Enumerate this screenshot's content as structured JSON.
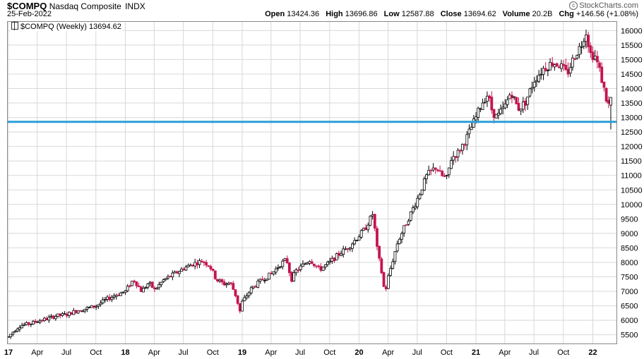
{
  "header": {
    "symbol": "$COMPQ",
    "name": "Nasdaq Composite",
    "exchange": "INDX",
    "date": "25-Feb-2022",
    "brand": "StockCharts.com",
    "open_label": "Open",
    "open": "13424.36",
    "high_label": "High",
    "high": "13696.86",
    "low_label": "Low",
    "low": "12587.88",
    "close_label": "Close",
    "close": "13694.62",
    "volume_label": "Volume",
    "volume": "20.2B",
    "chg_label": "Chg",
    "chg": "+146.56 (+1.08%)"
  },
  "legend": {
    "label": "$COMPQ (Weekly) 13694.62"
  },
  "colors": {
    "up": "#000000",
    "down": "#c4154e",
    "hline": "#2a9fd6",
    "grid": "#d8d8d8"
  },
  "chart_data": {
    "type": "candlestick",
    "interval": "weekly",
    "ylim": [
      5200,
      16300
    ],
    "y_axis_side": "right",
    "y_ticks": [
      5500,
      6000,
      6500,
      7000,
      7500,
      8000,
      8500,
      9000,
      9500,
      10000,
      10500,
      11000,
      11500,
      12000,
      12500,
      13000,
      13500,
      14000,
      14500,
      15000,
      15500,
      16000
    ],
    "x_ticks": [
      {
        "label": "17",
        "bold": true,
        "t": 0
      },
      {
        "label": "Apr",
        "t": 0.2466
      },
      {
        "label": "Jul",
        "t": 0.4959
      },
      {
        "label": "Oct",
        "t": 0.7479
      },
      {
        "label": "18",
        "bold": true,
        "t": 1.0
      },
      {
        "label": "Apr",
        "t": 1.2466
      },
      {
        "label": "Jul",
        "t": 1.4959
      },
      {
        "label": "Oct",
        "t": 1.7479
      },
      {
        "label": "19",
        "bold": true,
        "t": 2.0
      },
      {
        "label": "Apr",
        "t": 2.2466
      },
      {
        "label": "Jul",
        "t": 2.4959
      },
      {
        "label": "Oct",
        "t": 2.7479
      },
      {
        "label": "20",
        "bold": true,
        "t": 3.0
      },
      {
        "label": "Apr",
        "t": 3.2486
      },
      {
        "label": "Jul",
        "t": 3.4973
      },
      {
        "label": "Oct",
        "t": 3.7486
      },
      {
        "label": "21",
        "bold": true,
        "t": 4.0
      },
      {
        "label": "Apr",
        "t": 4.2466
      },
      {
        "label": "Jul",
        "t": 4.4959
      },
      {
        "label": "Oct",
        "t": 4.7479
      },
      {
        "label": "22",
        "bold": true,
        "t": 5.0
      }
    ],
    "t_range": [
      0,
      5.16
    ],
    "horizontal_line": 12850,
    "anchors": [
      [
        0.0,
        5430
      ],
      [
        0.05,
        5650
      ],
      [
        0.1,
        5820
      ],
      [
        0.15,
        5860
      ],
      [
        0.2,
        5900
      ],
      [
        0.25,
        5980
      ],
      [
        0.33,
        6050
      ],
      [
        0.4,
        6150
      ],
      [
        0.5,
        6200
      ],
      [
        0.58,
        6330
      ],
      [
        0.66,
        6400
      ],
      [
        0.75,
        6500
      ],
      [
        0.83,
        6700
      ],
      [
        0.92,
        6880
      ],
      [
        1.0,
        7000
      ],
      [
        1.07,
        7420
      ],
      [
        1.1,
        7240
      ],
      [
        1.14,
        7000
      ],
      [
        1.2,
        7300
      ],
      [
        1.25,
        7050
      ],
      [
        1.33,
        7400
      ],
      [
        1.42,
        7600
      ],
      [
        1.5,
        7800
      ],
      [
        1.58,
        7950
      ],
      [
        1.66,
        8050
      ],
      [
        1.72,
        7900
      ],
      [
        1.78,
        7400
      ],
      [
        1.85,
        7250
      ],
      [
        1.9,
        7300
      ],
      [
        1.95,
        6800
      ],
      [
        1.98,
        6300
      ],
      [
        2.0,
        6630
      ],
      [
        2.08,
        7100
      ],
      [
        2.17,
        7400
      ],
      [
        2.25,
        7600
      ],
      [
        2.33,
        7950
      ],
      [
        2.38,
        8100
      ],
      [
        2.42,
        7400
      ],
      [
        2.46,
        7700
      ],
      [
        2.58,
        8100
      ],
      [
        2.66,
        7750
      ],
      [
        2.75,
        8000
      ],
      [
        2.83,
        8300
      ],
      [
        2.9,
        8500
      ],
      [
        2.95,
        8700
      ],
      [
        3.05,
        9150
      ],
      [
        3.12,
        9700
      ],
      [
        3.15,
        8550
      ],
      [
        3.2,
        7500
      ],
      [
        3.22,
        6900
      ],
      [
        3.25,
        7500
      ],
      [
        3.33,
        8700
      ],
      [
        3.42,
        9500
      ],
      [
        3.5,
        10200
      ],
      [
        3.58,
        11000
      ],
      [
        3.66,
        11300
      ],
      [
        3.7,
        11000
      ],
      [
        3.75,
        10900
      ],
      [
        3.79,
        11600
      ],
      [
        3.85,
        11800
      ],
      [
        3.92,
        12300
      ],
      [
        4.0,
        13000
      ],
      [
        4.05,
        13500
      ],
      [
        4.1,
        13800
      ],
      [
        4.14,
        13200
      ],
      [
        4.18,
        13000
      ],
      [
        4.25,
        13400
      ],
      [
        4.3,
        13900
      ],
      [
        4.36,
        13300
      ],
      [
        4.42,
        13500
      ],
      [
        4.5,
        14300
      ],
      [
        4.58,
        14700
      ],
      [
        4.66,
        14900
      ],
      [
        4.72,
        14800
      ],
      [
        4.78,
        14500
      ],
      [
        4.84,
        15100
      ],
      [
        4.9,
        15500
      ],
      [
        4.94,
        16000
      ],
      [
        4.98,
        15200
      ],
      [
        5.02,
        15100
      ],
      [
        5.06,
        14600
      ],
      [
        5.1,
        13900
      ],
      [
        5.13,
        13400
      ],
      [
        5.16,
        13694.62
      ]
    ],
    "last_candle": {
      "open": 13424.36,
      "high": 13696.86,
      "low": 12587.88,
      "close": 13694.62
    }
  }
}
